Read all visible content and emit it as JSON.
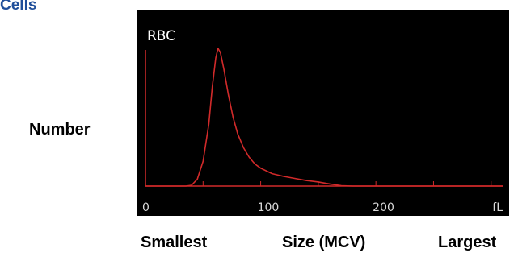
{
  "header": {
    "partial_title": "Cells"
  },
  "labels": {
    "y": "Number",
    "smallest": "Smallest",
    "size": "Size (MCV)",
    "largest": "Largest"
  },
  "chart_data": {
    "type": "line",
    "title": "RBC",
    "xlabel": "Size (MCV)",
    "ylabel": "Number",
    "xlim": [
      0,
      310
    ],
    "ylim": [
      0,
      1
    ],
    "xtick_labels": [
      "0",
      "100",
      "200",
      "fL"
    ],
    "grid": false,
    "line_color": "#d12a2a",
    "axis_color": "#d12a2a",
    "background": "#000000",
    "series": [
      {
        "values": [
          [
            0,
            0
          ],
          [
            35,
            0
          ],
          [
            40,
            0.006
          ],
          [
            45,
            0.05
          ],
          [
            50,
            0.18
          ],
          [
            55,
            0.45
          ],
          [
            58,
            0.72
          ],
          [
            61,
            0.93
          ],
          [
            63,
            1.0
          ],
          [
            65,
            0.97
          ],
          [
            68,
            0.85
          ],
          [
            72,
            0.66
          ],
          [
            76,
            0.5
          ],
          [
            80,
            0.38
          ],
          [
            85,
            0.28
          ],
          [
            90,
            0.21
          ],
          [
            95,
            0.16
          ],
          [
            100,
            0.13
          ],
          [
            110,
            0.09
          ],
          [
            120,
            0.07
          ],
          [
            130,
            0.055
          ],
          [
            140,
            0.04
          ],
          [
            150,
            0.03
          ],
          [
            160,
            0.015
          ],
          [
            170,
            0.003
          ],
          [
            180,
            0
          ],
          [
            310,
            0
          ]
        ]
      }
    ]
  }
}
